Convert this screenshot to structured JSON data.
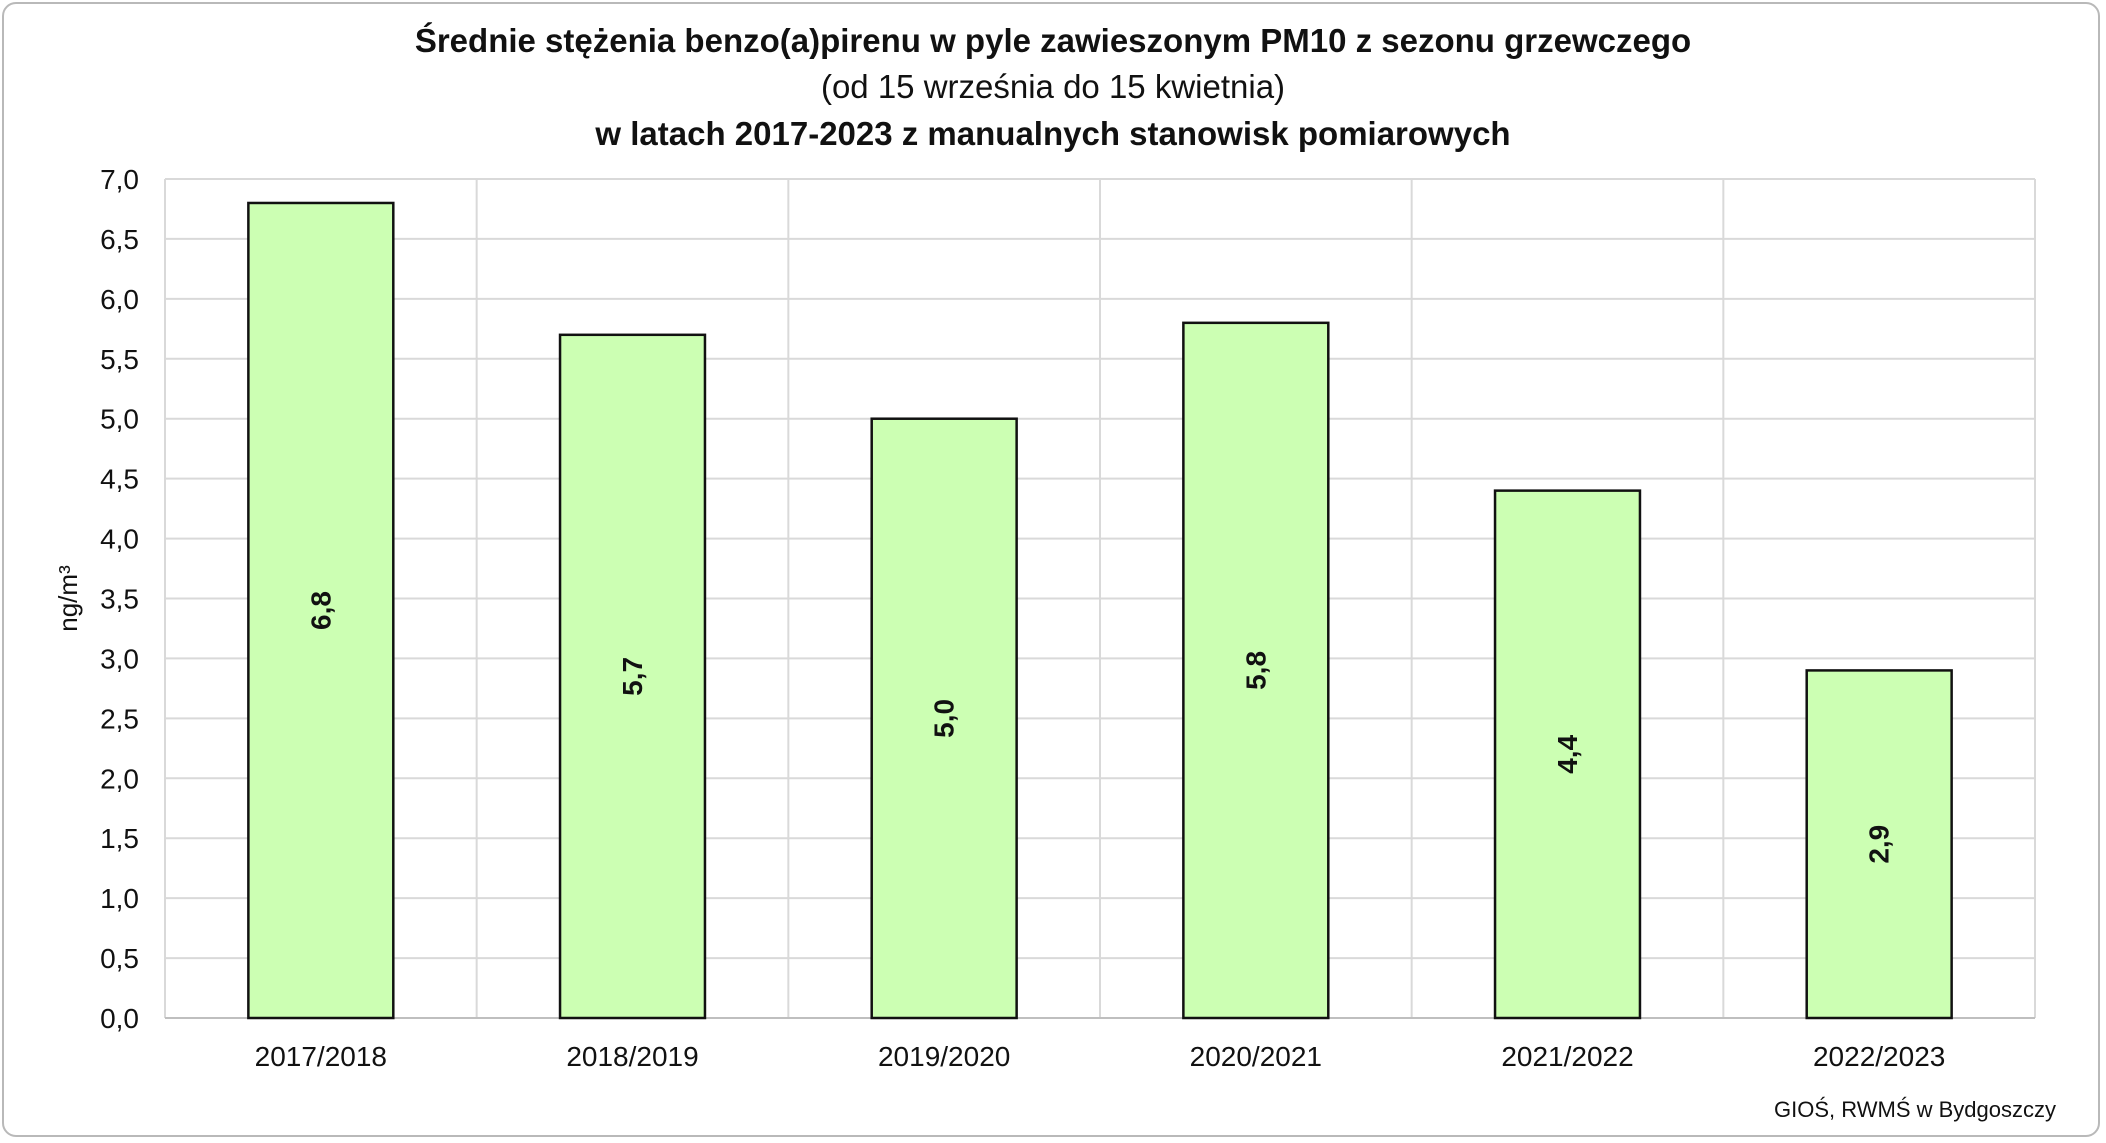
{
  "chart_data": {
    "type": "bar",
    "title": "Średnie stężenia benzo(a)pirenu w pyle zawieszonym PM10 z sezonu grzewczego",
    "subtitle": "(od 15 września do 15 kwietnia)",
    "subtitle2": "w latach 2017-2023 z manualnych stanowisk pomiarowych",
    "ylabel": "ng/m³",
    "xlabel": "",
    "categories": [
      "2017/2018",
      "2018/2019",
      "2019/2020",
      "2020/2021",
      "2021/2022",
      "2022/2023"
    ],
    "values": [
      6.8,
      5.7,
      5.0,
      5.8,
      4.4,
      2.9
    ],
    "value_labels": [
      "6,8",
      "5,7",
      "5,0",
      "5,8",
      "4,4",
      "2,9"
    ],
    "ylim": [
      0,
      7
    ],
    "yticks": [
      "0,0",
      "0,5",
      "1,0",
      "1,5",
      "2,0",
      "2,5",
      "3,0",
      "3,5",
      "4,0",
      "4,5",
      "5,0",
      "5,5",
      "6,0",
      "6,5",
      "7,0"
    ],
    "grid": true,
    "bar_color": "#ccffb3",
    "bar_edge_color": "#111111",
    "source": "GIOŚ, RWMŚ  w Bydgoszczy"
  }
}
